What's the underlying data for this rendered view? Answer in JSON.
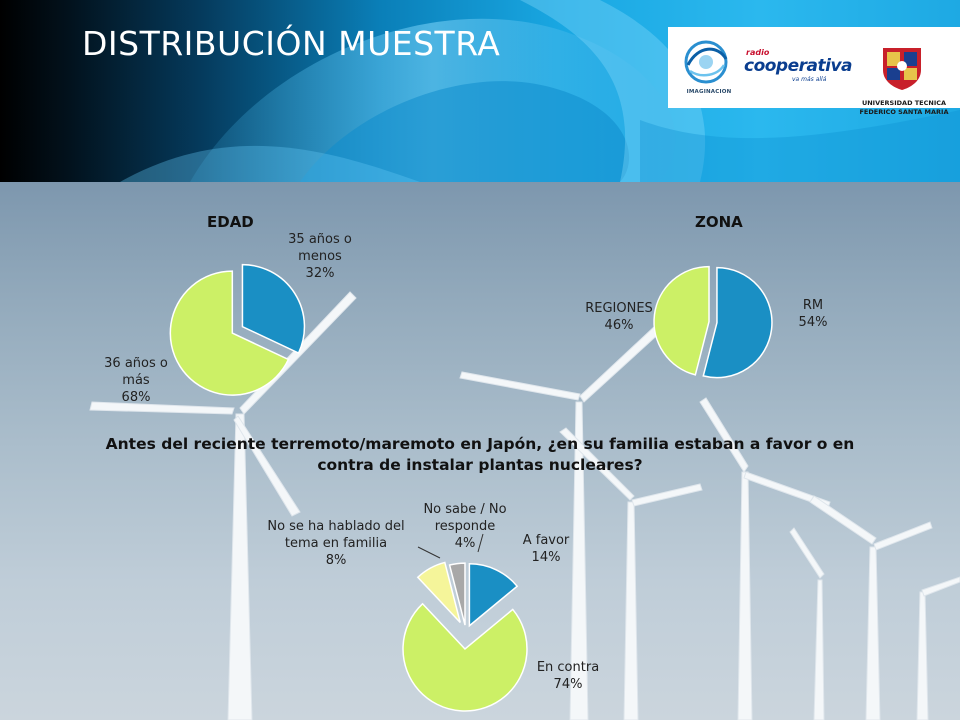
{
  "slide": {
    "title": "DISTRIBUCIÓN MUESTRA",
    "logos": {
      "imaginacion": "IMAGINACION",
      "cooperativa_top": "radio",
      "cooperativa_main": "cooperativa",
      "cooperativa_sub": "va más allá",
      "utfsm": "UNIVERSIDAD TECNICA FEDERICO SANTA MARIA"
    },
    "question": "Antes del reciente terremoto/maremoto en Japón, ¿en su familia estaban a favor o en contra de instalar plantas nucleares?"
  },
  "colors": {
    "blue": "#1a8fc4",
    "green": "#ccf066",
    "yellow": "#f5f59a",
    "gray": "#a8a8a8"
  },
  "chart_data": [
    {
      "type": "pie",
      "title": "EDAD",
      "slices": [
        {
          "label_lines": [
            "35 años o",
            "menos",
            "32%"
          ],
          "value": 32,
          "color": "#1a8fc4"
        },
        {
          "label_lines": [
            "36 años o",
            "más",
            "68%"
          ],
          "value": 68,
          "color": "#ccf066"
        }
      ]
    },
    {
      "type": "pie",
      "title": "ZONA",
      "slices": [
        {
          "label_lines": [
            "RM",
            "54%"
          ],
          "value": 54,
          "color": "#1a8fc4"
        },
        {
          "label_lines": [
            "REGIONES",
            "46%"
          ],
          "value": 46,
          "color": "#ccf066"
        }
      ]
    },
    {
      "type": "pie",
      "title": "",
      "slices": [
        {
          "label_lines": [
            "A favor",
            "14%"
          ],
          "value": 14,
          "color": "#1a8fc4"
        },
        {
          "label_lines": [
            "En contra",
            "74%"
          ],
          "value": 74,
          "color": "#ccf066"
        },
        {
          "label_lines": [
            "No se ha hablado del",
            "tema en familia",
            "8%"
          ],
          "value": 8,
          "color": "#f5f59a"
        },
        {
          "label_lines": [
            "No sabe / No",
            "responde",
            "4%"
          ],
          "value": 4,
          "color": "#a8a8a8"
        }
      ]
    }
  ]
}
